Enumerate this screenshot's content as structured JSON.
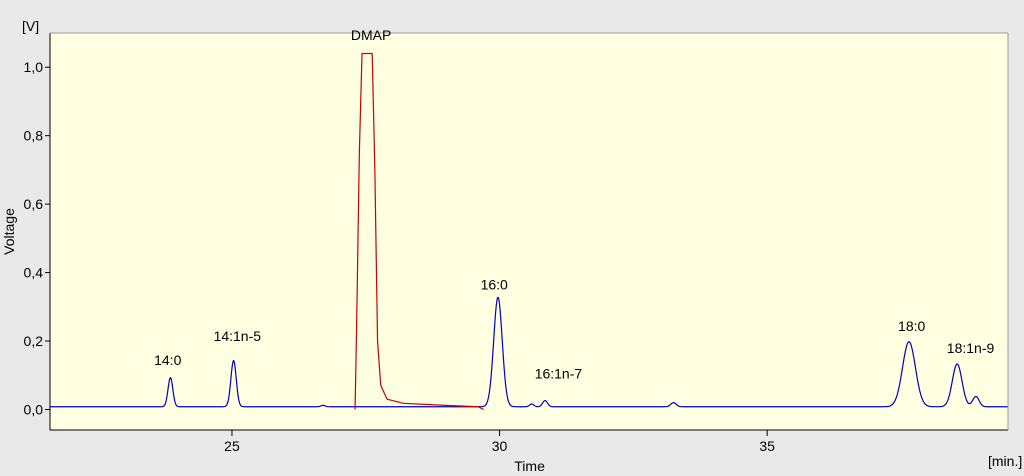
{
  "chart_data": {
    "type": "line",
    "title": "",
    "xlabel": "Time",
    "ylabel": "Voltage",
    "x_unit": "[min.]",
    "y_unit": "[V]",
    "xlim": [
      21.6,
      39.5
    ],
    "ylim": [
      -0.06,
      1.1
    ],
    "x_ticks": [
      25,
      30,
      35
    ],
    "x_tick_labels": [
      "25",
      "30",
      "35"
    ],
    "y_ticks": [
      0.0,
      0.2,
      0.4,
      0.6,
      0.8,
      1.0
    ],
    "y_tick_labels": [
      "0,0",
      "0,2",
      "0,4",
      "0,6",
      "0,8",
      "1,0"
    ],
    "grid": false,
    "plot_background": "#ffffe1",
    "page_background": "#e9e9e9",
    "series": [
      {
        "color": "#0000c8",
        "baseline": 0.008,
        "peaks": [
          {
            "center": 23.85,
            "height": 0.085,
            "width": 0.045
          },
          {
            "center": 25.03,
            "height": 0.135,
            "width": 0.05
          },
          {
            "center": 26.7,
            "height": 0.004,
            "width": 0.04
          },
          {
            "center": 29.97,
            "height": 0.32,
            "width": 0.08
          },
          {
            "center": 30.6,
            "height": 0.008,
            "width": 0.04
          },
          {
            "center": 30.85,
            "height": 0.018,
            "width": 0.045
          },
          {
            "center": 33.25,
            "height": 0.012,
            "width": 0.05
          },
          {
            "center": 37.65,
            "height": 0.19,
            "width": 0.12
          },
          {
            "center": 38.55,
            "height": 0.125,
            "width": 0.09
          },
          {
            "center": 38.9,
            "height": 0.03,
            "width": 0.06
          }
        ]
      },
      {
        "color": "#c80000",
        "points": [
          [
            27.3,
            0.0
          ],
          [
            27.33,
            0.25
          ],
          [
            27.38,
            0.75
          ],
          [
            27.43,
            1.04
          ],
          [
            27.62,
            1.04
          ],
          [
            27.67,
            0.7
          ],
          [
            27.72,
            0.2
          ],
          [
            27.78,
            0.07
          ],
          [
            27.9,
            0.03
          ],
          [
            28.2,
            0.018
          ],
          [
            29.0,
            0.012
          ],
          [
            29.6,
            0.008
          ],
          [
            29.7,
            0.0
          ]
        ]
      }
    ],
    "annotations": [
      {
        "text": "14:0",
        "x": 23.8,
        "y": 0.13
      },
      {
        "text": "14:1n-5",
        "x": 25.1,
        "y": 0.2
      },
      {
        "text": "DMAP",
        "x": 27.6,
        "y": 1.08
      },
      {
        "text": "16:0",
        "x": 29.9,
        "y": 0.35
      },
      {
        "text": "16:1n-7",
        "x": 31.1,
        "y": 0.09
      },
      {
        "text": "18:0",
        "x": 37.7,
        "y": 0.23
      },
      {
        "text": "18:1n-9",
        "x": 38.8,
        "y": 0.165
      }
    ]
  }
}
